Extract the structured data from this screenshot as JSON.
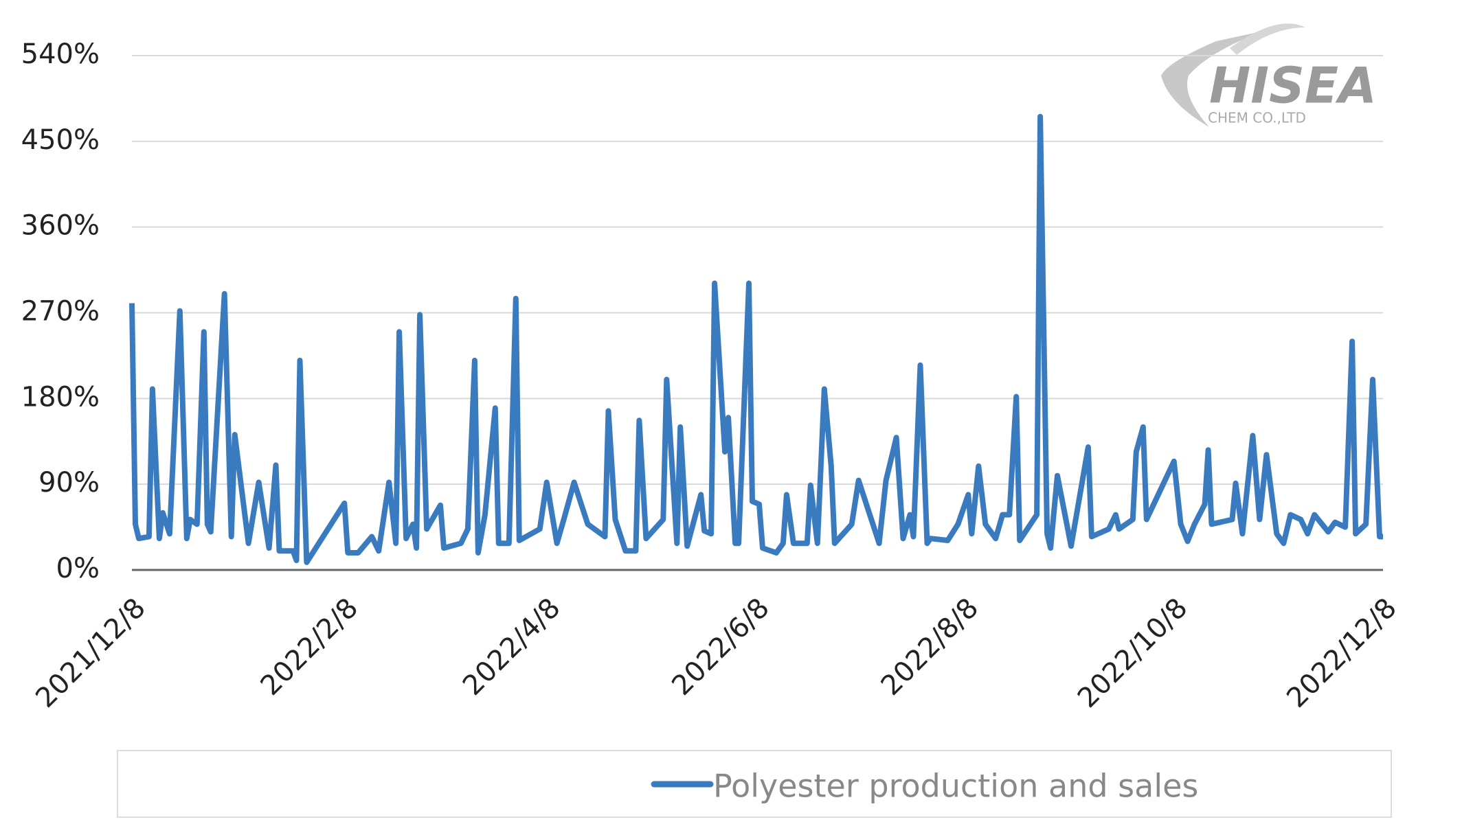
{
  "chart_data": {
    "type": "line",
    "logo": {
      "name": "HISEA",
      "subtitle": "CHEM CO.,LTD"
    },
    "xlim": [
      "2021/12/8",
      "2022/12/8"
    ],
    "xticks": [
      "2021/12/8",
      "2022/2/8",
      "2022/4/8",
      "2022/6/8",
      "2022/8/8",
      "2022/10/8",
      "2022/12/8"
    ],
    "ylim": [
      0,
      540
    ],
    "yticks": [
      {
        "value": 0,
        "label": "0%"
      },
      {
        "value": 90,
        "label": "90%"
      },
      {
        "value": 180,
        "label": "180%"
      },
      {
        "value": 270,
        "label": "270%"
      },
      {
        "value": 360,
        "label": "360%"
      },
      {
        "value": 450,
        "label": "450%"
      },
      {
        "value": 540,
        "label": "540%"
      }
    ],
    "grid": true,
    "x": [
      "2021/12/8",
      "2021/12/9",
      "2021/12/10",
      "2021/12/13",
      "2021/12/14",
      "2021/12/16",
      "2021/12/17",
      "2021/12/19",
      "2021/12/22",
      "2021/12/24",
      "2021/12/25",
      "2021/12/27",
      "2021/12/29",
      "2021/12/30",
      "2021/12/31",
      "2022/1/4",
      "2022/1/6",
      "2022/1/7",
      "2022/1/11",
      "2022/1/14",
      "2022/1/17",
      "2022/1/19",
      "2022/1/20",
      "2022/1/24",
      "2022/1/25",
      "2022/1/26",
      "2022/1/28",
      "2022/2/8",
      "2022/2/9",
      "2022/2/12",
      "2022/2/16",
      "2022/2/18",
      "2022/2/21",
      "2022/2/23",
      "2022/2/24",
      "2022/2/26",
      "2022/2/28",
      "2022/3/1",
      "2022/3/2",
      "2022/3/4",
      "2022/3/8",
      "2022/3/9",
      "2022/3/14",
      "2022/3/16",
      "2022/3/18",
      "2022/3/19",
      "2022/3/21",
      "2022/3/24",
      "2022/3/25",
      "2022/3/28",
      "2022/3/30",
      "2022/3/31",
      "2022/4/6",
      "2022/4/8",
      "2022/4/11",
      "2022/4/13",
      "2022/4/16",
      "2022/4/20",
      "2022/4/25",
      "2022/4/26",
      "2022/4/28",
      "2022/5/1",
      "2022/5/4",
      "2022/5/5",
      "2022/5/7",
      "2022/5/12",
      "2022/5/13",
      "2022/5/16",
      "2022/5/17",
      "2022/5/19",
      "2022/5/23",
      "2022/5/24",
      "2022/5/26",
      "2022/5/27",
      "2022/5/30",
      "2022/5/31",
      "2022/6/2",
      "2022/6/3",
      "2022/6/6",
      "2022/6/7",
      "2022/6/9",
      "2022/6/10",
      "2022/6/14",
      "2022/6/16",
      "2022/6/17",
      "2022/6/19",
      "2022/6/23",
      "2022/6/24",
      "2022/6/26",
      "2022/6/28",
      "2022/6/30",
      "2022/7/1",
      "2022/7/6",
      "2022/7/8",
      "2022/7/14",
      "2022/7/16",
      "2022/7/19",
      "2022/7/21",
      "2022/7/23",
      "2022/7/24",
      "2022/7/26",
      "2022/7/28",
      "2022/7/29",
      "2022/8/3",
      "2022/8/6",
      "2022/8/9",
      "2022/8/10",
      "2022/8/12",
      "2022/8/14",
      "2022/8/17",
      "2022/8/19",
      "2022/8/21",
      "2022/8/23",
      "2022/8/24",
      "2022/8/29",
      "2022/8/30",
      "2022/9/1",
      "2022/9/2",
      "2022/9/4",
      "2022/9/8",
      "2022/9/13",
      "2022/9/14",
      "2022/9/19",
      "2022/9/21",
      "2022/9/22",
      "2022/9/26",
      "2022/9/27",
      "2022/9/29",
      "2022/9/30",
      "2022/10/8",
      "2022/10/10",
      "2022/10/12",
      "2022/10/14",
      "2022/10/17",
      "2022/10/18",
      "2022/10/19",
      "2022/10/25",
      "2022/10/26",
      "2022/10/28",
      "2022/10/31",
      "2022/11/2",
      "2022/11/4",
      "2022/11/7",
      "2022/11/9",
      "2022/11/11",
      "2022/11/14",
      "2022/11/16",
      "2022/11/18",
      "2022/11/22",
      "2022/11/24",
      "2022/11/27",
      "2022/11/29",
      "2022/11/30",
      "2022/12/3",
      "2022/12/5",
      "2022/12/7",
      "2022/12/8"
    ],
    "series": [
      {
        "name": "Polyester production and sales",
        "color": "#3a7bc0",
        "values": [
          280,
          48,
          33,
          35,
          190,
          33,
          60,
          38,
          272,
          33,
          53,
          48,
          250,
          48,
          40,
          290,
          35,
          142,
          28,
          92,
          23,
          110,
          20,
          20,
          10,
          220,
          8,
          70,
          18,
          18,
          35,
          20,
          92,
          28,
          250,
          33,
          48,
          23,
          268,
          43,
          68,
          23,
          28,
          43,
          220,
          18,
          58,
          170,
          28,
          28,
          285,
          31,
          43,
          92,
          28,
          53,
          92,
          48,
          35,
          167,
          53,
          20,
          20,
          157,
          33,
          53,
          200,
          28,
          150,
          25,
          79,
          41,
          38,
          301,
          124,
          160,
          28,
          28,
          301,
          72,
          69,
          23,
          18,
          28,
          79,
          28,
          28,
          89,
          28,
          190,
          109,
          28,
          48,
          94,
          28,
          94,
          139,
          33,
          58,
          35,
          215,
          28,
          33,
          31,
          48,
          79,
          38,
          109,
          48,
          33,
          58,
          58,
          182,
          31,
          58,
          476,
          38,
          23,
          99,
          25,
          129,
          35,
          43,
          58,
          43,
          53,
          124,
          150,
          53,
          114,
          48,
          30,
          48,
          69,
          126,
          48,
          53,
          91,
          38,
          141,
          53,
          121,
          38,
          28,
          58,
          53,
          38,
          58,
          40,
          50,
          45,
          240,
          38,
          48,
          200,
          35,
          35
        ]
      }
    ]
  }
}
